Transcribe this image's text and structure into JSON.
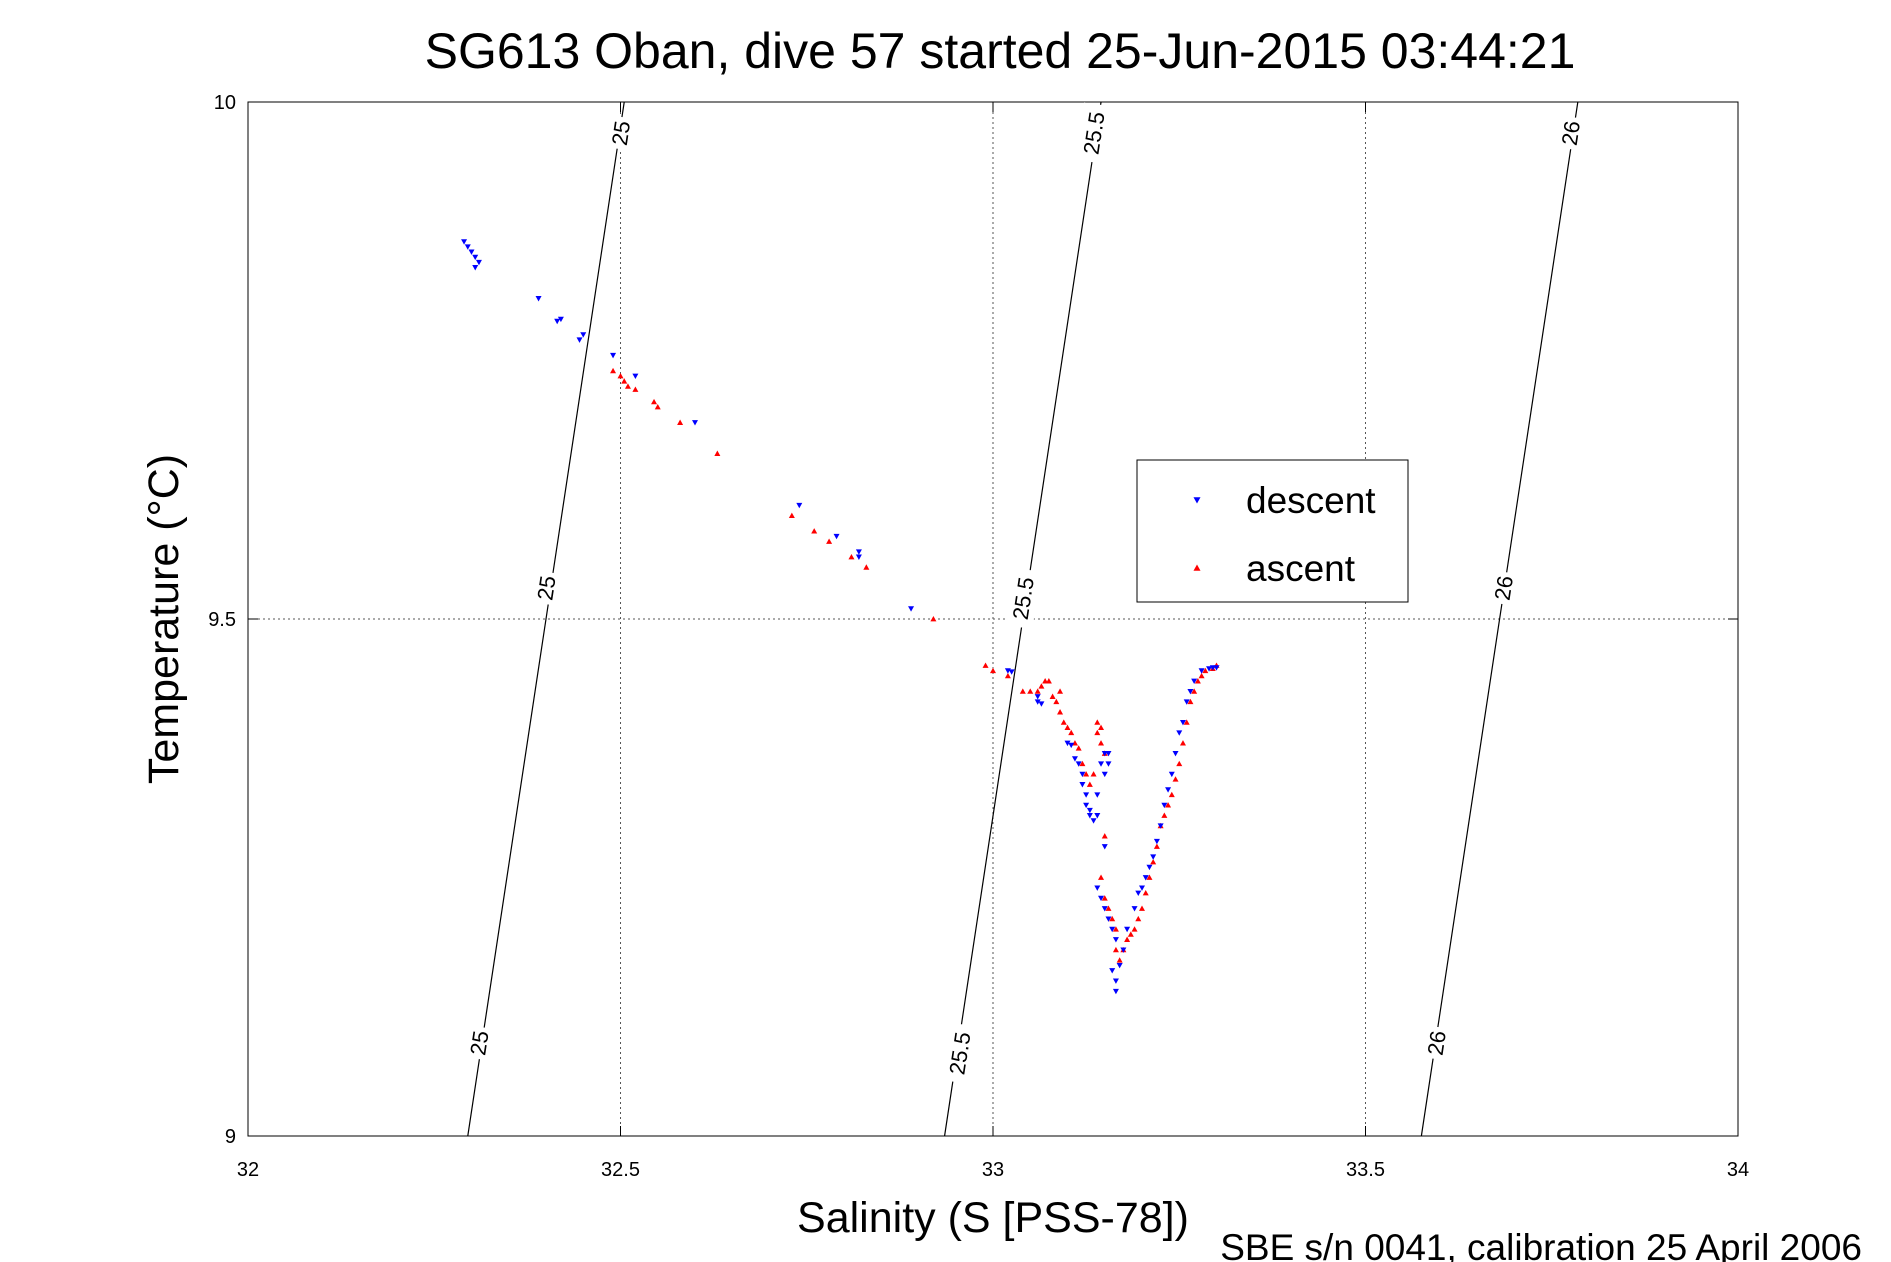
{
  "chart_data": {
    "type": "scatter",
    "title": "SG613 Oban, dive 57 started 25-Jun-2015 03:44:21",
    "xlabel": "Salinity (S [PSS-78])",
    "ylabel": "Temperature (°C)",
    "xlim": [
      32,
      34
    ],
    "ylim": [
      9,
      10
    ],
    "xticks": [
      "32",
      "32.5",
      "33",
      "33.5",
      "34"
    ],
    "yticks": [
      "9",
      "9.5",
      "10"
    ],
    "grid": true,
    "legend_position": "right-center",
    "footnote": "SBE s/n 0041, calibration 25 April 2006",
    "density_contours": [
      {
        "level": "25",
        "points": [
          [
            32.295,
            9.0
          ],
          [
            32.505,
            10.0
          ]
        ],
        "labels": [
          [
            32.31,
            9.09
          ],
          [
            32.4,
            9.53
          ],
          [
            32.5,
            9.97
          ]
        ]
      },
      {
        "level": "25.5",
        "points": [
          [
            32.935,
            9.0
          ],
          [
            33.145,
            10.0
          ]
        ],
        "labels": [
          [
            32.955,
            9.08
          ],
          [
            33.04,
            9.52
          ],
          [
            33.135,
            9.97
          ]
        ]
      },
      {
        "level": "26",
        "points": [
          [
            33.575,
            9.0
          ],
          [
            33.785,
            10.0
          ]
        ],
        "labels": [
          [
            33.595,
            9.09
          ],
          [
            33.685,
            9.53
          ],
          [
            33.775,
            9.97
          ]
        ]
      }
    ],
    "series": [
      {
        "name": "descent",
        "color": "#0000ff",
        "marker": "triangle-down",
        "points": [
          [
            32.29,
            9.865
          ],
          [
            32.295,
            9.86
          ],
          [
            32.3,
            9.855
          ],
          [
            32.305,
            9.85
          ],
          [
            32.31,
            9.845
          ],
          [
            32.305,
            9.84
          ],
          [
            32.39,
            9.81
          ],
          [
            32.42,
            9.79
          ],
          [
            32.415,
            9.788
          ],
          [
            32.45,
            9.775
          ],
          [
            32.445,
            9.77
          ],
          [
            32.49,
            9.755
          ],
          [
            32.52,
            9.735
          ],
          [
            32.6,
            9.69
          ],
          [
            32.74,
            9.61
          ],
          [
            32.79,
            9.58
          ],
          [
            32.82,
            9.565
          ],
          [
            32.82,
            9.56
          ],
          [
            32.89,
            9.51
          ],
          [
            33.02,
            9.45
          ],
          [
            33.025,
            9.449
          ],
          [
            33.06,
            9.425
          ],
          [
            33.06,
            9.42
          ],
          [
            33.065,
            9.418
          ],
          [
            33.1,
            9.38
          ],
          [
            33.105,
            9.378
          ],
          [
            33.11,
            9.365
          ],
          [
            33.115,
            9.36
          ],
          [
            33.12,
            9.35
          ],
          [
            33.12,
            9.34
          ],
          [
            33.125,
            9.33
          ],
          [
            33.125,
            9.32
          ],
          [
            33.13,
            9.315
          ],
          [
            33.13,
            9.31
          ],
          [
            33.135,
            9.305
          ],
          [
            33.14,
            9.31
          ],
          [
            33.14,
            9.33
          ],
          [
            33.145,
            9.36
          ],
          [
            33.15,
            9.37
          ],
          [
            33.155,
            9.37
          ],
          [
            33.155,
            9.36
          ],
          [
            33.15,
            9.35
          ],
          [
            33.15,
            9.28
          ],
          [
            33.14,
            9.24
          ],
          [
            33.145,
            9.23
          ],
          [
            33.15,
            9.22
          ],
          [
            33.155,
            9.21
          ],
          [
            33.16,
            9.2
          ],
          [
            33.165,
            9.19
          ],
          [
            33.16,
            9.16
          ],
          [
            33.165,
            9.15
          ],
          [
            33.165,
            9.14
          ],
          [
            33.17,
            9.165
          ],
          [
            33.175,
            9.18
          ],
          [
            33.18,
            9.2
          ],
          [
            33.19,
            9.22
          ],
          [
            33.195,
            9.235
          ],
          [
            33.2,
            9.24
          ],
          [
            33.205,
            9.25
          ],
          [
            33.21,
            9.26
          ],
          [
            33.215,
            9.27
          ],
          [
            33.22,
            9.285
          ],
          [
            33.225,
            9.3
          ],
          [
            33.23,
            9.32
          ],
          [
            33.235,
            9.335
          ],
          [
            33.24,
            9.35
          ],
          [
            33.245,
            9.37
          ],
          [
            33.25,
            9.39
          ],
          [
            33.255,
            9.4
          ],
          [
            33.26,
            9.42
          ],
          [
            33.265,
            9.43
          ],
          [
            33.27,
            9.44
          ],
          [
            33.28,
            9.45
          ],
          [
            33.29,
            9.452
          ],
          [
            33.295,
            9.453
          ],
          [
            33.3,
            9.453
          ]
        ]
      },
      {
        "name": "ascent",
        "color": "#ff0000",
        "marker": "triangle-up",
        "points": [
          [
            32.49,
            9.74
          ],
          [
            32.5,
            9.735
          ],
          [
            32.505,
            9.73
          ],
          [
            32.51,
            9.725
          ],
          [
            32.52,
            9.722
          ],
          [
            32.545,
            9.71
          ],
          [
            32.55,
            9.705
          ],
          [
            32.58,
            9.69
          ],
          [
            32.63,
            9.66
          ],
          [
            32.73,
            9.6
          ],
          [
            32.76,
            9.585
          ],
          [
            32.78,
            9.575
          ],
          [
            32.81,
            9.56
          ],
          [
            32.83,
            9.55
          ],
          [
            32.92,
            9.5
          ],
          [
            32.99,
            9.455
          ],
          [
            33.0,
            9.45
          ],
          [
            33.02,
            9.445
          ],
          [
            33.04,
            9.43
          ],
          [
            33.05,
            9.43
          ],
          [
            33.06,
            9.43
          ],
          [
            33.065,
            9.435
          ],
          [
            33.07,
            9.44
          ],
          [
            33.075,
            9.44
          ],
          [
            33.08,
            9.425
          ],
          [
            33.085,
            9.42
          ],
          [
            33.09,
            9.43
          ],
          [
            33.09,
            9.41
          ],
          [
            33.095,
            9.4
          ],
          [
            33.1,
            9.395
          ],
          [
            33.105,
            9.39
          ],
          [
            33.11,
            9.38
          ],
          [
            33.115,
            9.375
          ],
          [
            33.12,
            9.36
          ],
          [
            33.125,
            9.35
          ],
          [
            33.13,
            9.34
          ],
          [
            33.135,
            9.35
          ],
          [
            33.14,
            9.39
          ],
          [
            33.14,
            9.4
          ],
          [
            33.145,
            9.395
          ],
          [
            33.145,
            9.38
          ],
          [
            33.15,
            9.37
          ],
          [
            33.15,
            9.29
          ],
          [
            33.145,
            9.25
          ],
          [
            33.15,
            9.23
          ],
          [
            33.155,
            9.22
          ],
          [
            33.16,
            9.21
          ],
          [
            33.165,
            9.2
          ],
          [
            33.165,
            9.18
          ],
          [
            33.17,
            9.17
          ],
          [
            33.175,
            9.18
          ],
          [
            33.18,
            9.19
          ],
          [
            33.185,
            9.195
          ],
          [
            33.19,
            9.2
          ],
          [
            33.195,
            9.21
          ],
          [
            33.2,
            9.22
          ],
          [
            33.205,
            9.235
          ],
          [
            33.21,
            9.25
          ],
          [
            33.215,
            9.265
          ],
          [
            33.22,
            9.28
          ],
          [
            33.225,
            9.3
          ],
          [
            33.23,
            9.31
          ],
          [
            33.235,
            9.32
          ],
          [
            33.24,
            9.33
          ],
          [
            33.245,
            9.345
          ],
          [
            33.25,
            9.36
          ],
          [
            33.255,
            9.38
          ],
          [
            33.26,
            9.4
          ],
          [
            33.265,
            9.42
          ],
          [
            33.27,
            9.43
          ],
          [
            33.275,
            9.44
          ],
          [
            33.28,
            9.445
          ],
          [
            33.285,
            9.45
          ],
          [
            33.295,
            9.452
          ],
          [
            33.3,
            9.455
          ]
        ]
      }
    ]
  }
}
